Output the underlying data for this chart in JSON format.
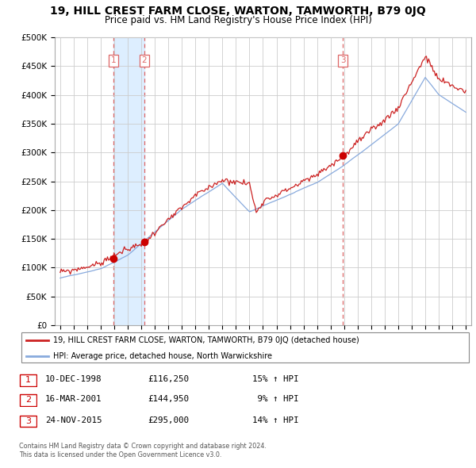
{
  "title": "19, HILL CREST FARM CLOSE, WARTON, TAMWORTH, B79 0JQ",
  "subtitle": "Price paid vs. HM Land Registry's House Price Index (HPI)",
  "legend_line1": "19, HILL CREST FARM CLOSE, WARTON, TAMWORTH, B79 0JQ (detached house)",
  "legend_line2": "HPI: Average price, detached house, North Warwickshire",
  "footer1": "Contains HM Land Registry data © Crown copyright and database right 2024.",
  "footer2": "This data is licensed under the Open Government Licence v3.0.",
  "sale_points": [
    {
      "num": 1,
      "date": "10-DEC-1998",
      "price": 116250,
      "pct": "15%",
      "dir": "↑",
      "x": 1998.96
    },
    {
      "num": 2,
      "date": "16-MAR-2001",
      "price": 144950,
      "pct": "9%",
      "dir": "↑",
      "x": 2001.21
    },
    {
      "num": 3,
      "date": "24-NOV-2015",
      "price": 295000,
      "pct": "14%",
      "dir": "↑",
      "x": 2015.9
    }
  ],
  "table_rows": [
    {
      "num": "1",
      "date": "10-DEC-1998",
      "price": "£116,250",
      "info": "15% ↑ HPI"
    },
    {
      "num": "2",
      "date": "16-MAR-2001",
      "price": "£144,950",
      "info": " 9% ↑ HPI"
    },
    {
      "num": "3",
      "date": "24-NOV-2015",
      "price": "£295,000",
      "info": "14% ↑ HPI"
    }
  ],
  "vline_color": "#dd6666",
  "shade_color": "#ddeeff",
  "sale_dot_color": "#cc0000",
  "hpi_line_color": "#88aadd",
  "price_line_color": "#cc2222",
  "ylim": [
    0,
    500000
  ],
  "yticks": [
    0,
    50000,
    100000,
    150000,
    200000,
    250000,
    300000,
    350000,
    400000,
    450000,
    500000
  ],
  "xlim_start": 1994.6,
  "xlim_end": 2025.4,
  "background_color": "#ffffff",
  "grid_color": "#cccccc",
  "title_fontsize": 10,
  "subtitle_fontsize": 8.5
}
